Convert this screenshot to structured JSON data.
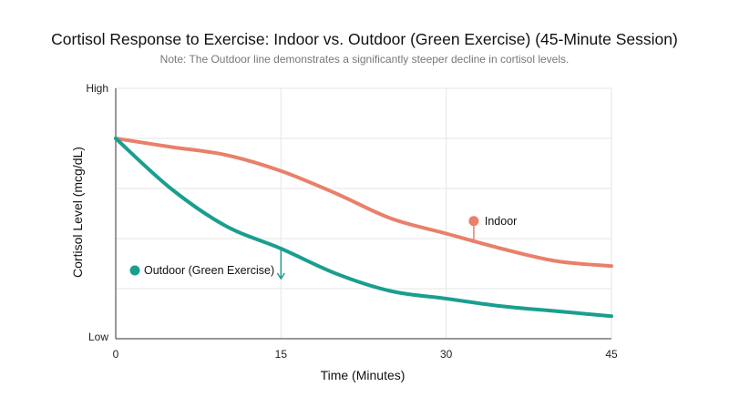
{
  "chart_data": {
    "type": "line",
    "title": "Cortisol Response to Exercise: Indoor vs. Outdoor (Green Exercise) (45-Minute Session)",
    "subtitle": "Note: The Outdoor line demonstrates a significantly steeper decline in cortisol levels.",
    "xlabel": "Time (Minutes)",
    "ylabel": "Cortisol Level (mcg/dL)",
    "xlim": [
      0,
      45
    ],
    "ylim": [
      0,
      5
    ],
    "x_ticks": [
      "0",
      "15",
      "30",
      "45"
    ],
    "y_ticks": [
      "High",
      "Low"
    ],
    "grid": true,
    "x": [
      0,
      5,
      10,
      15,
      20,
      25,
      30,
      35,
      40,
      45
    ],
    "series": [
      {
        "name": "Indoor",
        "color": "#e8806a",
        "values": [
          4.0,
          3.83,
          3.67,
          3.35,
          2.9,
          2.4,
          2.1,
          1.8,
          1.55,
          1.45
        ]
      },
      {
        "name": "Outdoor (Green Exercise)",
        "color": "#1a9e8f",
        "values": [
          4.0,
          3.0,
          2.25,
          1.8,
          1.3,
          0.95,
          0.8,
          0.65,
          0.55,
          0.45
        ]
      }
    ],
    "annotations": [
      {
        "text": "Indoor",
        "series": "Indoor",
        "x": 32.5
      },
      {
        "text": "Outdoor (Green Exercise)",
        "series": "Outdoor (Green Exercise)",
        "x": 15
      }
    ]
  }
}
